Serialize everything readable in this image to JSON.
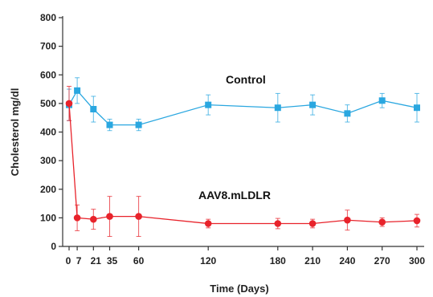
{
  "chart_data": {
    "type": "line",
    "xlabel": "Time (Days)",
    "ylabel": "Cholesterol mg/dl",
    "ylim": [
      0,
      800
    ],
    "yticks": [
      0,
      100,
      200,
      300,
      400,
      500,
      600,
      700,
      800
    ],
    "xticks": [
      {
        "value": 0,
        "label": "0"
      },
      {
        "value": 7,
        "label": "7"
      },
      {
        "value": 21,
        "label": "21"
      },
      {
        "value": 35,
        "label": "35"
      },
      {
        "value": 60,
        "label": "60"
      },
      {
        "value": 120,
        "label": "120"
      },
      {
        "value": 180,
        "label": "180"
      },
      {
        "value": 210,
        "label": "210"
      },
      {
        "value": 240,
        "label": "240"
      },
      {
        "value": 270,
        "label": "270"
      },
      {
        "value": 300,
        "label": "300"
      }
    ],
    "grid": false,
    "legend": "none",
    "series": [
      {
        "name": "Control",
        "color": "#2aa7e0",
        "marker": "square",
        "x": [
          0,
          7,
          21,
          35,
          60,
          120,
          180,
          210,
          240,
          270,
          300
        ],
        "y": [
          495,
          545,
          480,
          425,
          425,
          495,
          485,
          495,
          465,
          510,
          485
        ],
        "err": [
          55,
          45,
          45,
          20,
          20,
          35,
          50,
          35,
          30,
          25,
          50
        ]
      },
      {
        "name": "AAV8.mLDLR",
        "color": "#e8232b",
        "marker": "circle",
        "x": [
          0,
          7,
          21,
          35,
          60,
          120,
          180,
          210,
          240,
          270,
          300
        ],
        "y": [
          500,
          100,
          95,
          105,
          105,
          80,
          80,
          80,
          92,
          85,
          90
        ],
        "err": [
          60,
          45,
          35,
          70,
          70,
          15,
          18,
          15,
          35,
          15,
          22
        ]
      }
    ]
  }
}
